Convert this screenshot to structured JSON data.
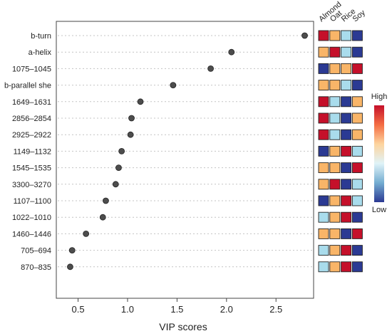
{
  "chart_data": {
    "type": "scatter",
    "title": "",
    "xlabel": "VIP scores",
    "ylabel": "",
    "xlim": [
      0.28,
      2.88
    ],
    "xticks": [
      0.5,
      1.0,
      1.5,
      2.0,
      2.5
    ],
    "xtick_labels": [
      "0.5",
      "1.0",
      "1.5",
      "2.0",
      "2.5"
    ],
    "grid": "horizontal dotted",
    "categories": [
      "b-turn",
      "a-helix",
      "1075–1045",
      "b-parallel she",
      "1649–1631",
      "2856–2854",
      "2925–2922",
      "1149–1132",
      "1545–1535",
      "3300–3270",
      "1107–1100",
      "1022–1010",
      "1460–1446",
      "705–694",
      "870–835"
    ],
    "values": [
      2.79,
      2.05,
      1.84,
      1.46,
      1.13,
      1.04,
      1.03,
      0.94,
      0.91,
      0.88,
      0.78,
      0.75,
      0.58,
      0.44,
      0.42
    ],
    "heatmap": {
      "columns": [
        "Almond",
        "Oat",
        "Rice",
        "Soy"
      ],
      "levels": [
        [
          4,
          3,
          1,
          0
        ],
        [
          3,
          4,
          1,
          0
        ],
        [
          0,
          3,
          3,
          4
        ],
        [
          3,
          3,
          1,
          0
        ],
        [
          4,
          1,
          0,
          3
        ],
        [
          4,
          1,
          0,
          3
        ],
        [
          4,
          1,
          0,
          3
        ],
        [
          0,
          3,
          4,
          1
        ],
        [
          3,
          3,
          0,
          4
        ],
        [
          3,
          4,
          0,
          1
        ],
        [
          0,
          3,
          4,
          1
        ],
        [
          1,
          3,
          4,
          0
        ],
        [
          3,
          3,
          0,
          4
        ],
        [
          1,
          3,
          4,
          0
        ],
        [
          1,
          3,
          4,
          0
        ]
      ],
      "level_colors": [
        "#2b3a93",
        "#a9dcec",
        "#e4f2f3",
        "#f9b568",
        "#c5102a"
      ]
    },
    "legend": {
      "high_label": "High",
      "low_label": "Low",
      "gradient_stops": [
        "#c5102a",
        "#f46d43",
        "#fdd49e",
        "#e0f3f8",
        "#74add1",
        "#2b3a93"
      ],
      "placement": "right"
    },
    "point_color": "#4d4d4d"
  }
}
